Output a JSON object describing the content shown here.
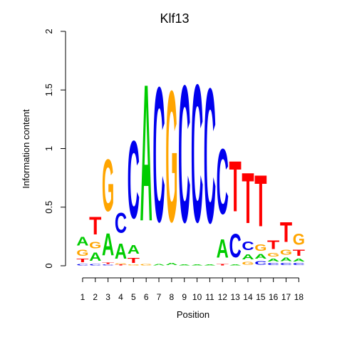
{
  "chart_data": {
    "type": "sequence-logo",
    "title": "Klf13",
    "xlabel": "Position",
    "ylabel": "Information content",
    "ylim": [
      0,
      2
    ],
    "yticks": [
      "0",
      "0.5",
      "1",
      "1.5",
      "2"
    ],
    "positions": [
      "1",
      "2",
      "3",
      "4",
      "5",
      "6",
      "7",
      "8",
      "9",
      "10",
      "11",
      "12",
      "13",
      "14",
      "15",
      "16",
      "17",
      "18"
    ],
    "colors": {
      "A": "#00cc00",
      "C": "#0000ee",
      "G": "#ffa500",
      "T": "#ff0000"
    },
    "columns": [
      [
        {
          "base": "C",
          "h": 0.02
        },
        {
          "base": "T",
          "h": 0.05
        },
        {
          "base": "G",
          "h": 0.08
        },
        {
          "base": "A",
          "h": 0.12
        }
      ],
      [
        {
          "base": "C",
          "h": 0.02
        },
        {
          "base": "A",
          "h": 0.11
        },
        {
          "base": "G",
          "h": 0.09
        },
        {
          "base": "T",
          "h": 0.24
        }
      ],
      [
        {
          "base": "C",
          "h": 0.01
        },
        {
          "base": "T",
          "h": 0.02
        },
        {
          "base": "A",
          "h": 0.3
        },
        {
          "base": "G",
          "h": 0.71
        }
      ],
      [
        {
          "base": "T",
          "h": 0.01
        },
        {
          "base": "G",
          "h": 0.01
        },
        {
          "base": "A",
          "h": 0.21
        },
        {
          "base": "C",
          "h": 0.27
        }
      ],
      [
        {
          "base": "G",
          "h": 0.01
        },
        {
          "base": "T",
          "h": 0.07
        },
        {
          "base": "A",
          "h": 0.12
        },
        {
          "base": "C",
          "h": 1.06
        }
      ],
      [
        {
          "base": "G",
          "h": 0.02
        },
        {
          "base": "A",
          "h": 1.87
        }
      ],
      [
        {
          "base": "A",
          "h": 0.02
        },
        {
          "base": "C",
          "h": 1.84
        }
      ],
      [
        {
          "base": "A",
          "h": 0.03
        },
        {
          "base": "G",
          "h": 1.79
        }
      ],
      [
        {
          "base": "A",
          "h": 0.01
        },
        {
          "base": "C",
          "h": 1.87
        }
      ],
      [
        {
          "base": "A",
          "h": 0.01
        },
        {
          "base": "C",
          "h": 1.88
        }
      ],
      [
        {
          "base": "A",
          "h": 0.01
        },
        {
          "base": "C",
          "h": 1.84
        }
      ],
      [
        {
          "base": "T",
          "h": 0.02
        },
        {
          "base": "A",
          "h": 0.25
        },
        {
          "base": "C",
          "h": 0.89
        }
      ],
      [
        {
          "base": "A",
          "h": 0.01
        },
        {
          "base": "C",
          "h": 0.32
        },
        {
          "base": "T",
          "h": 0.69
        }
      ],
      [
        {
          "base": "G",
          "h": 0.04
        },
        {
          "base": "A",
          "h": 0.07
        },
        {
          "base": "C",
          "h": 0.12
        },
        {
          "base": "T",
          "h": 0.69
        }
      ],
      [
        {
          "base": "C",
          "h": 0.05
        },
        {
          "base": "A",
          "h": 0.06
        },
        {
          "base": "G",
          "h": 0.09
        },
        {
          "base": "T",
          "h": 0.7
        }
      ],
      [
        {
          "base": "C",
          "h": 0.03
        },
        {
          "base": "A",
          "h": 0.04
        },
        {
          "base": "G",
          "h": 0.05
        },
        {
          "base": "T",
          "h": 0.12
        }
      ],
      [
        {
          "base": "C",
          "h": 0.03
        },
        {
          "base": "A",
          "h": 0.05
        },
        {
          "base": "G",
          "h": 0.07
        },
        {
          "base": "T",
          "h": 0.27
        }
      ],
      [
        {
          "base": "C",
          "h": 0.03
        },
        {
          "base": "A",
          "h": 0.04
        },
        {
          "base": "T",
          "h": 0.08
        },
        {
          "base": "G",
          "h": 0.15
        }
      ]
    ]
  }
}
